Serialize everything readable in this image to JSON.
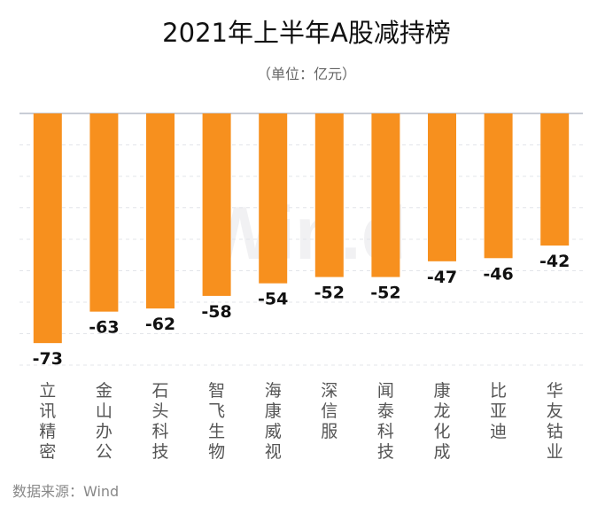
{
  "title": "2021年上半年A股减持榜",
  "unit_note": "（单位：亿元）",
  "source": "数据来源：Wind",
  "watermark": "Win.d",
  "colors": {
    "bar": "#f7901e",
    "axis": "#c9cdd6",
    "grid": "#e3e5ea",
    "label": "#111111",
    "category": "#555555"
  },
  "chart_data": {
    "type": "bar",
    "categories": [
      "立讯精密",
      "金山办公",
      "石头科技",
      "智飞生物",
      "海康威视",
      "深信服",
      "闻泰科技",
      "康龙化成",
      "比亚迪",
      "华友钴业"
    ],
    "values": [
      -73,
      -63,
      -62,
      -58,
      -54,
      -52,
      -52,
      -47,
      -46,
      -42
    ],
    "ylim": [
      -80,
      0
    ],
    "grid": true,
    "data_labels": [
      "-73",
      "-63",
      "-62",
      "-58",
      "-54",
      "-52",
      "-52",
      "-47",
      "-46",
      "-42"
    ]
  }
}
